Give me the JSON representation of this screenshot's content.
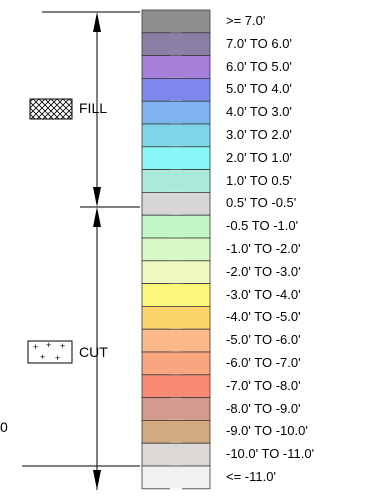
{
  "legend": {
    "fill_label": "FILL",
    "cut_label": "CUT",
    "edge_fragment": "0",
    "swatch_colors": {
      "fill_hatch": "#000000",
      "cut_dots": "#000000"
    },
    "rows": [
      {
        "label": ">= 7.0'",
        "color": "#8e8e8e"
      },
      {
        "label": "7.0' TO 6.0'",
        "color": "#8b7fa8"
      },
      {
        "label": "6.0' TO 5.0'",
        "color": "#a57fd8"
      },
      {
        "label": "5.0' TO 4.0'",
        "color": "#7f87ee"
      },
      {
        "label": "4.0' TO 3.0'",
        "color": "#7fb4f0"
      },
      {
        "label": "3.0' TO 2.0'",
        "color": "#7fd5ea"
      },
      {
        "label": "2.0' TO 1.0'",
        "color": "#87f6f6"
      },
      {
        "label": "1.0' TO 0.5'",
        "color": "#a9ead8"
      },
      {
        "label": "0.5' TO -0.5'",
        "color": "#d6d6d6"
      },
      {
        "label": "-0.5 TO -1.0'",
        "color": "#c4f7c8"
      },
      {
        "label": "-1.0' TO -2.0'",
        "color": "#d8f8c8"
      },
      {
        "label": "-2.0' TO -3.0'",
        "color": "#eefac0"
      },
      {
        "label": "-3.0' TO -4.0'",
        "color": "#fbf77a"
      },
      {
        "label": "-4.0' TO -5.0'",
        "color": "#fbd56c"
      },
      {
        "label": "-5.0' TO -6.0'",
        "color": "#fbb98a"
      },
      {
        "label": "-6.0' TO -7.0'",
        "color": "#f9a57f"
      },
      {
        "label": "-7.0' TO -8.0'",
        "color": "#f98a74"
      },
      {
        "label": "-8.0' TO -9.0'",
        "color": "#d49a8e"
      },
      {
        "label": "-9.0' TO -10.0'",
        "color": "#d2aa80"
      },
      {
        "label": "-10.0' TO -11.0'",
        "color": "#dcd8d4"
      },
      {
        "label": "<= -11.0'",
        "color": "#f2f2f2"
      }
    ]
  }
}
